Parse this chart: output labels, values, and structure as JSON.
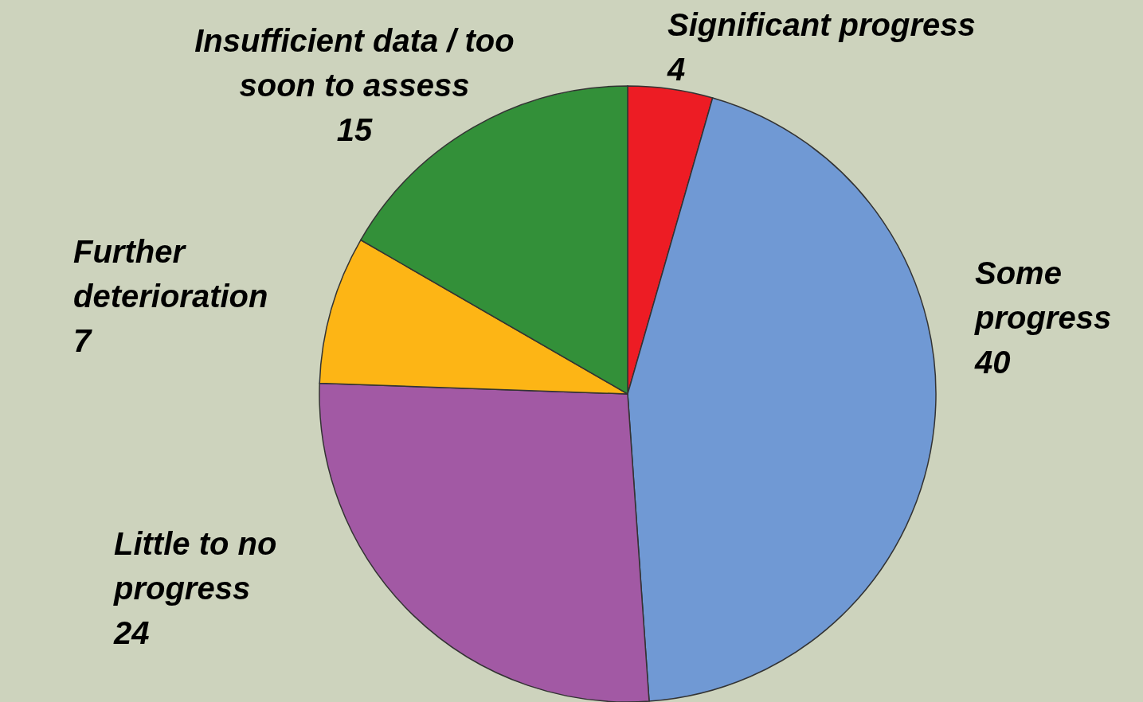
{
  "chart_data": {
    "type": "pie",
    "categories": [
      "Significant progress",
      "Some progress",
      "Little to no progress",
      "Further deterioration",
      "Insufficient data / too soon to assess"
    ],
    "values": [
      4,
      40,
      24,
      7,
      15
    ],
    "colors": [
      "#ed1c24",
      "#7099d4",
      "#a259a4",
      "#fdb515",
      "#339039"
    ],
    "data_labels": true
  }
}
